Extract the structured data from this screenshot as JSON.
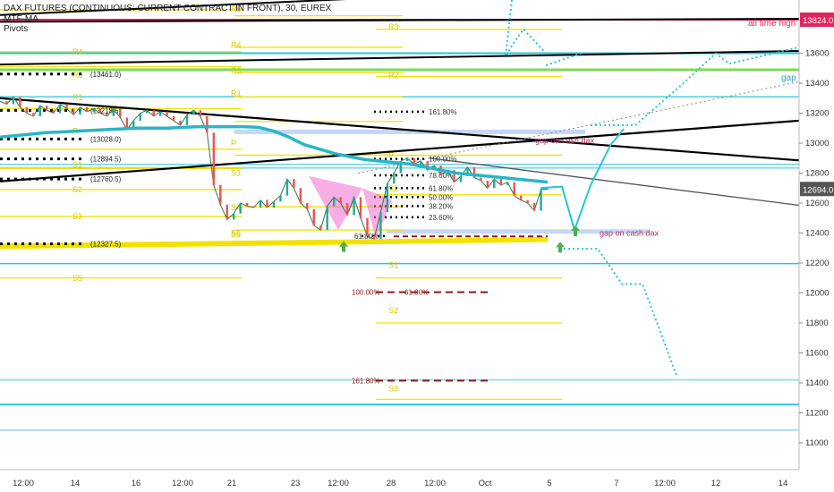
{
  "header": {
    "symbol": "DAX FUTURES (CONTINUOUS: CURRENT CONTRACT IN FRONT), 30, EUREX",
    "indicator1": "MTF-MA",
    "indicator2": "Pivots"
  },
  "colors": {
    "pivot_yellow": "#f2e200",
    "cyan": "#26c6da",
    "ma_teal": "#2ab5c7",
    "ath_red": "#e0245e",
    "gap_green": "#7ed957",
    "gap_label": "#26a5c9",
    "cash_gap_label": "#b03060",
    "arrow_green": "#4caf50",
    "dotted_cyan": "#26c6da",
    "pattern_pink": "#f06bd0",
    "fib_red": "#8b1a1a"
  },
  "chart_data": {
    "type": "line",
    "title": "DAX FUTURES (CONTINUOUS: CURRENT CONTRACT IN FRONT), 30, EUREX",
    "ylim": [
      10850,
      14030
    ],
    "y_ticks": [
      11000,
      11200,
      11400,
      11600,
      11800,
      12000,
      12200,
      12400,
      12600,
      12800,
      13000,
      13200,
      13400,
      13600
    ],
    "x_ticks": [
      "12:00",
      "14",
      "16",
      "12:00",
      "21",
      "23",
      "12:00",
      "28",
      "12:00",
      "Oct",
      "5",
      "7",
      "12:00",
      "12",
      "14"
    ],
    "price_tags": [
      {
        "label": "13824.0",
        "value": 13824,
        "color": "#e0245e"
      },
      {
        "label": "12694.0",
        "value": 12694,
        "color": "#555555"
      }
    ],
    "dotted_levels": [
      {
        "label": "(13461.0)",
        "value": 13461
      },
      {
        "label": "(13218.5)",
        "value": 13218.5
      },
      {
        "label": "(13028.0)",
        "value": 13028
      },
      {
        "label": "(12894.5)",
        "value": 12894.5
      },
      {
        "label": "(12760.5)",
        "value": 12760.5
      },
      {
        "label": "(12327.5)",
        "value": 12327.5
      }
    ],
    "fib_levels": [
      {
        "label": "161.80%",
        "value": 13210
      },
      {
        "label": "100.00%",
        "value": 12895
      },
      {
        "label": "78.60%",
        "value": 12785
      },
      {
        "label": "61.80%",
        "value": 12700
      },
      {
        "label": "50.00%",
        "value": 12640
      },
      {
        "label": "38.20%",
        "value": 12580
      },
      {
        "label": "23.60%",
        "value": 12505
      },
      {
        "label": "61.80%",
        "value": 12380
      }
    ],
    "red_fib_levels": [
      {
        "label": "100.00%",
        "value": 12005
      },
      {
        "label": "61.80%",
        "value": 12005
      },
      {
        "label": "161.80%",
        "value": 11415
      }
    ],
    "pivot_labels": [
      "R5",
      "R4",
      "R3",
      "R2",
      "R1",
      "P",
      "S1",
      "S2",
      "S3",
      "S4",
      "S5",
      "R3",
      "R2",
      "P",
      "S1",
      "S2",
      "S3",
      "R4",
      "R3",
      "R1",
      "S5"
    ],
    "annotations": {
      "all_time_high": "all time high",
      "gap": "gap",
      "gap_on_cash_dax_upper": "gap on cash dax",
      "gap_on_cash_dax_lower": "gap on cash dax"
    },
    "price_series": [
      13280,
      13260,
      13310,
      13240,
      13200,
      13180,
      13250,
      13220,
      13200,
      13260,
      13230,
      13190,
      13240,
      13210,
      13230,
      13200,
      13180,
      13230,
      13170,
      13090,
      13150,
      13200,
      13220,
      13180,
      13210,
      13180,
      13150,
      13120,
      13190,
      13220,
      13180,
      13070,
      12720,
      12590,
      12490,
      12530,
      12600,
      12580,
      12570,
      12620,
      12570,
      12610,
      12650,
      12760,
      12700,
      12600,
      12560,
      12450,
      12420,
      12580,
      12640,
      12600,
      12520,
      12640,
      12500,
      12380,
      12360,
      12540,
      12730,
      12800,
      12880,
      12900,
      12860,
      12880,
      12820,
      12850,
      12790,
      12820,
      12740,
      12780,
      12840,
      12770,
      12750,
      12700,
      12760,
      12720,
      12740,
      12650,
      12620,
      12600,
      12550,
      12690,
      12694
    ],
    "ma_series": [
      13040,
      13050,
      13060,
      13070,
      13075,
      13080,
      13085,
      13090,
      13095,
      13100,
      13100,
      13100,
      13105,
      13110,
      13110,
      13110,
      13110,
      13105,
      13080,
      13040,
      12990,
      12960,
      12930,
      12910,
      12890,
      12880,
      12870,
      12860,
      12840,
      12820,
      12800,
      12790,
      12780,
      12770,
      12760,
      12750,
      12740
    ],
    "projection_path": [
      12700,
      12710,
      12420,
      12720,
      12985,
      13095
    ]
  }
}
